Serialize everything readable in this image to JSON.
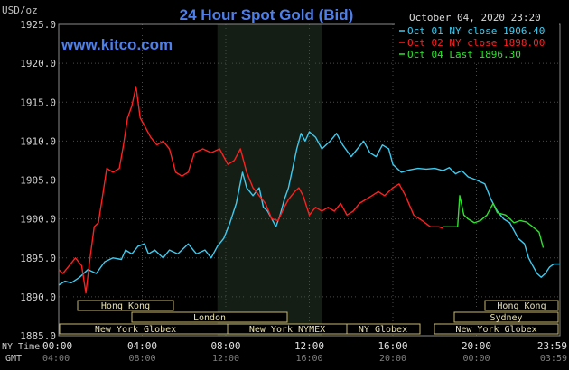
{
  "header": {
    "unit_label": "USD/oz",
    "title": "24 Hour Spot Gold (Bid)",
    "website": "www.kitco.com",
    "date": "October 04, 2020 23:20"
  },
  "legend": [
    {
      "text": "Oct 01 NY close 1906.40",
      "color": "#3ecbf0"
    },
    {
      "text": "Oct 02 NY close 1898.00",
      "color": "#ff2020"
    },
    {
      "text": "Oct 04 Last 1896.30",
      "color": "#30e030"
    }
  ],
  "footer": {
    "ny_time_label": "NY Time",
    "gmt_label": "GMT"
  },
  "market_bars": [
    {
      "label": "Hong Kong"
    },
    {
      "label": "London"
    },
    {
      "label": "New York Globex"
    },
    {
      "label": "New York NYMEX"
    },
    {
      "label": "NY Globex"
    },
    {
      "label": "Hong Kong"
    },
    {
      "label": "Sydney"
    },
    {
      "label": "New York Globex"
    }
  ],
  "chart_data": {
    "type": "line",
    "title": "24 Hour Spot Gold (Bid)",
    "ylabel": "USD/oz",
    "ylim": [
      1885,
      1925
    ],
    "yticks": [
      "1925.0",
      "1920.0",
      "1915.0",
      "1910.0",
      "1905.0",
      "1900.0",
      "1895.0",
      "1890.0",
      "1885.0"
    ],
    "xlim": [
      0,
      24
    ],
    "xticks_ny": [
      "00:00",
      "04:00",
      "08:00",
      "12:00",
      "16:00",
      "20:00",
      "23:59"
    ],
    "xticks_gmt": [
      "04:00",
      "08:00",
      "12:00",
      "16:00",
      "20:00",
      "00:00",
      "03:59"
    ],
    "grid": true,
    "shaded_region_hours": [
      7.6,
      12.6
    ],
    "series": [
      {
        "name": "Oct 01 NY close 1906.40",
        "color": "#3ecbf0",
        "points": [
          [
            0,
            1891.5
          ],
          [
            0.3,
            1892
          ],
          [
            0.6,
            1891.8
          ],
          [
            1,
            1892.5
          ],
          [
            1.4,
            1893.5
          ],
          [
            1.8,
            1893
          ],
          [
            2.2,
            1894.5
          ],
          [
            2.6,
            1895
          ],
          [
            3,
            1894.8
          ],
          [
            3.2,
            1896
          ],
          [
            3.5,
            1895.5
          ],
          [
            3.8,
            1896.5
          ],
          [
            4.1,
            1896.8
          ],
          [
            4.3,
            1895.5
          ],
          [
            4.6,
            1896
          ],
          [
            5,
            1895
          ],
          [
            5.3,
            1896
          ],
          [
            5.7,
            1895.5
          ],
          [
            6.2,
            1896.8
          ],
          [
            6.6,
            1895.5
          ],
          [
            7,
            1896
          ],
          [
            7.3,
            1895
          ],
          [
            7.6,
            1896.5
          ],
          [
            7.9,
            1897.5
          ],
          [
            8.2,
            1899.5
          ],
          [
            8.5,
            1902
          ],
          [
            8.8,
            1906
          ],
          [
            9,
            1904
          ],
          [
            9.3,
            1903
          ],
          [
            9.6,
            1904
          ],
          [
            9.8,
            1901.5
          ],
          [
            10,
            1901
          ],
          [
            10.2,
            1900
          ],
          [
            10.4,
            1899
          ],
          [
            10.6,
            1900.5
          ],
          [
            10.8,
            1902.5
          ],
          [
            11,
            1904
          ],
          [
            11.2,
            1906.5
          ],
          [
            11.4,
            1909
          ],
          [
            11.6,
            1911
          ],
          [
            11.8,
            1910
          ],
          [
            12,
            1911.2
          ],
          [
            12.3,
            1910.5
          ],
          [
            12.6,
            1909
          ],
          [
            13,
            1910
          ],
          [
            13.3,
            1911
          ],
          [
            13.6,
            1909.5
          ],
          [
            14,
            1908
          ],
          [
            14.3,
            1909
          ],
          [
            14.6,
            1910
          ],
          [
            14.9,
            1908.5
          ],
          [
            15.2,
            1908
          ],
          [
            15.5,
            1909.5
          ],
          [
            15.8,
            1909
          ],
          [
            16,
            1907
          ],
          [
            16.4,
            1906
          ],
          [
            16.8,
            1906.3
          ],
          [
            17.2,
            1906.5
          ],
          [
            17.6,
            1906.4
          ],
          [
            18,
            1906.5
          ],
          [
            18.4,
            1906.2
          ],
          [
            18.7,
            1906.6
          ],
          [
            19,
            1905.8
          ],
          [
            19.3,
            1906.2
          ],
          [
            19.6,
            1905.4
          ],
          [
            20,
            1905
          ],
          [
            20.4,
            1904.5
          ],
          [
            20.7,
            1902.5
          ],
          [
            21,
            1901
          ],
          [
            21.3,
            1900
          ],
          [
            21.6,
            1899.5
          ],
          [
            22,
            1897.5
          ],
          [
            22.3,
            1896.8
          ],
          [
            22.5,
            1895
          ],
          [
            22.7,
            1894
          ],
          [
            22.9,
            1893
          ],
          [
            23.1,
            1892.5
          ],
          [
            23.3,
            1893
          ],
          [
            23.5,
            1893.8
          ],
          [
            23.7,
            1894.2
          ],
          [
            23.99,
            1894.2
          ]
        ]
      },
      {
        "name": "Oct 02 NY close 1898.00",
        "color": "#ff2020",
        "points": [
          [
            0,
            1893.5
          ],
          [
            0.2,
            1893
          ],
          [
            0.5,
            1894
          ],
          [
            0.8,
            1895
          ],
          [
            1.1,
            1894
          ],
          [
            1.3,
            1890.5
          ],
          [
            1.5,
            1895
          ],
          [
            1.7,
            1899
          ],
          [
            1.9,
            1899.5
          ],
          [
            2.1,
            1903
          ],
          [
            2.3,
            1906.5
          ],
          [
            2.6,
            1906
          ],
          [
            2.9,
            1906.5
          ],
          [
            3.1,
            1909.5
          ],
          [
            3.3,
            1913
          ],
          [
            3.5,
            1914.5
          ],
          [
            3.7,
            1917
          ],
          [
            3.9,
            1913
          ],
          [
            4.1,
            1912
          ],
          [
            4.4,
            1910.5
          ],
          [
            4.7,
            1909.5
          ],
          [
            5,
            1910
          ],
          [
            5.3,
            1909
          ],
          [
            5.6,
            1906
          ],
          [
            5.9,
            1905.5
          ],
          [
            6.2,
            1906
          ],
          [
            6.5,
            1908.5
          ],
          [
            6.9,
            1909
          ],
          [
            7.3,
            1908.5
          ],
          [
            7.7,
            1909
          ],
          [
            8.1,
            1907
          ],
          [
            8.4,
            1907.5
          ],
          [
            8.7,
            1909
          ],
          [
            9,
            1906
          ],
          [
            9.3,
            1904
          ],
          [
            9.6,
            1903
          ],
          [
            9.9,
            1902
          ],
          [
            10.2,
            1900
          ],
          [
            10.5,
            1899.8
          ],
          [
            10.8,
            1901.5
          ],
          [
            11,
            1902.5
          ],
          [
            11.3,
            1903.5
          ],
          [
            11.5,
            1904
          ],
          [
            11.7,
            1903
          ],
          [
            12,
            1900.5
          ],
          [
            12.3,
            1901.5
          ],
          [
            12.6,
            1901
          ],
          [
            12.9,
            1901.5
          ],
          [
            13.2,
            1901
          ],
          [
            13.5,
            1902
          ],
          [
            13.8,
            1900.5
          ],
          [
            14.1,
            1901
          ],
          [
            14.4,
            1902
          ],
          [
            14.7,
            1902.5
          ],
          [
            15,
            1903
          ],
          [
            15.3,
            1903.5
          ],
          [
            15.6,
            1903
          ],
          [
            16,
            1904
          ],
          [
            16.3,
            1904.5
          ],
          [
            16.6,
            1903
          ],
          [
            17,
            1900.5
          ],
          [
            17.4,
            1899.8
          ],
          [
            17.8,
            1899
          ],
          [
            18.2,
            1899
          ],
          [
            18.4,
            1898.8
          ]
        ]
      },
      {
        "name": "Oct 04 Last 1896.30",
        "color": "#30e030",
        "points": [
          [
            18.4,
            1899
          ],
          [
            19.1,
            1899
          ],
          [
            19.2,
            1903
          ],
          [
            19.4,
            1900.5
          ],
          [
            19.6,
            1900
          ],
          [
            19.9,
            1899.5
          ],
          [
            20.2,
            1899.8
          ],
          [
            20.5,
            1900.5
          ],
          [
            20.8,
            1902
          ],
          [
            21,
            1900.8
          ],
          [
            21.4,
            1900.5
          ],
          [
            21.8,
            1899.5
          ],
          [
            22.1,
            1899.8
          ],
          [
            22.4,
            1899.6
          ],
          [
            22.7,
            1899
          ],
          [
            23,
            1898.3
          ],
          [
            23.2,
            1896.3
          ]
        ]
      }
    ]
  }
}
